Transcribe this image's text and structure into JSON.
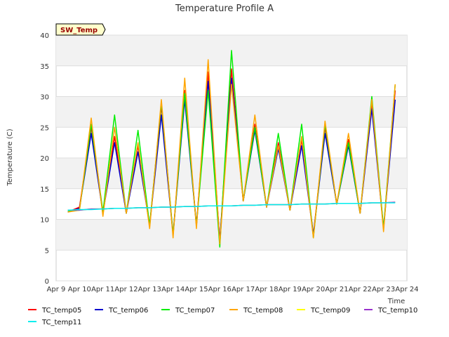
{
  "chart_data": {
    "type": "line",
    "title": "Temperature Profile A",
    "xlabel": "Time",
    "ylabel": "Temperature (C)",
    "ylim": [
      0,
      40
    ],
    "yticks": [
      0,
      5,
      10,
      15,
      20,
      25,
      30,
      35,
      40
    ],
    "x_range": [
      "2024-04-09",
      "2024-04-24"
    ],
    "xticks": [
      "Apr 9",
      "Apr 10",
      "Apr 11",
      "Apr 12",
      "Apr 13",
      "Apr 14",
      "Apr 15",
      "Apr 16",
      "Apr 17",
      "Apr 18",
      "Apr 19",
      "Apr 20",
      "Apr 21",
      "Apr 22",
      "Apr 23",
      "Apr 24"
    ],
    "grid": "horizontal bands",
    "legend_position": "bottom",
    "annotation": "SW_Temp",
    "x": [
      "2024-04-09 12:00",
      "2024-04-10 00:00",
      "2024-04-10 12:00",
      "2024-04-11 00:00",
      "2024-04-11 12:00",
      "2024-04-12 00:00",
      "2024-04-12 12:00",
      "2024-04-13 00:00",
      "2024-04-13 12:00",
      "2024-04-14 00:00",
      "2024-04-14 12:00",
      "2024-04-15 00:00",
      "2024-04-15 12:00",
      "2024-04-16 00:00",
      "2024-04-16 12:00",
      "2024-04-17 00:00",
      "2024-04-17 12:00",
      "2024-04-18 00:00",
      "2024-04-18 12:00",
      "2024-04-19 00:00",
      "2024-04-19 12:00",
      "2024-04-20 00:00",
      "2024-04-20 12:00",
      "2024-04-21 00:00",
      "2024-04-21 12:00",
      "2024-04-22 00:00",
      "2024-04-22 12:00",
      "2024-04-23 00:00",
      "2024-04-23 12:00"
    ],
    "series": [
      {
        "name": "TC_temp05",
        "color": "#ff0000",
        "values": [
          11.2,
          12.0,
          25.0,
          11.0,
          23.5,
          11.0,
          22.0,
          9.0,
          28.5,
          7.5,
          31.0,
          9.0,
          34.0,
          6.5,
          34.5,
          13.0,
          25.5,
          12.0,
          22.5,
          11.5,
          23.0,
          7.5,
          25.0,
          12.5,
          23.0,
          11.0,
          29.0,
          8.5,
          31.0
        ]
      },
      {
        "name": "TC_temp06",
        "color": "#0000cc",
        "values": [
          11.2,
          11.8,
          24.0,
          11.0,
          22.5,
          11.0,
          21.0,
          9.0,
          27.0,
          7.5,
          29.5,
          9.0,
          32.5,
          6.5,
          33.0,
          13.0,
          24.5,
          12.0,
          21.5,
          11.5,
          22.0,
          7.5,
          24.0,
          12.5,
          22.0,
          11.0,
          28.0,
          8.5,
          29.5
        ]
      },
      {
        "name": "TC_temp07",
        "color": "#00ee00",
        "values": [
          11.3,
          11.5,
          25.5,
          11.2,
          27.0,
          11.0,
          24.5,
          9.0,
          29.0,
          7.5,
          30.5,
          9.0,
          31.0,
          5.5,
          37.5,
          13.0,
          25.0,
          12.0,
          24.0,
          11.5,
          25.5,
          7.0,
          25.5,
          12.5,
          22.5,
          11.0,
          30.0,
          8.5,
          32.0
        ]
      },
      {
        "name": "TC_temp08",
        "color": "#ffa500",
        "values": [
          11.2,
          11.5,
          26.5,
          10.5,
          25.0,
          11.0,
          22.5,
          8.5,
          29.5,
          7.0,
          33.0,
          8.5,
          36.0,
          6.0,
          32.0,
          13.0,
          27.0,
          12.0,
          22.0,
          11.5,
          23.5,
          7.0,
          26.0,
          12.5,
          24.0,
          11.0,
          29.5,
          8.0,
          32.0
        ]
      },
      {
        "name": "TC_temp09",
        "color": "#ffff00",
        "values": [
          11.5,
          11.5,
          11.7,
          11.7,
          11.8,
          11.8,
          11.9,
          11.9,
          12.0,
          12.0,
          12.1,
          12.1,
          12.2,
          12.2,
          12.2,
          12.3,
          12.3,
          12.4,
          12.4,
          12.4,
          12.5,
          12.5,
          12.5,
          12.6,
          12.6,
          12.6,
          12.7,
          12.7,
          12.8
        ]
      },
      {
        "name": "TC_temp10",
        "color": "#9932cc",
        "values": [
          11.5,
          11.5,
          11.7,
          11.7,
          11.8,
          11.8,
          11.9,
          11.9,
          12.0,
          12.0,
          12.1,
          12.1,
          12.2,
          12.2,
          12.2,
          12.3,
          12.3,
          12.4,
          12.4,
          12.4,
          12.5,
          12.5,
          12.5,
          12.6,
          12.6,
          12.6,
          12.7,
          12.7,
          12.8
        ]
      },
      {
        "name": "TC_temp11",
        "color": "#00eeee",
        "values": [
          11.5,
          11.6,
          11.6,
          11.7,
          11.8,
          11.8,
          11.9,
          11.9,
          12.0,
          12.0,
          12.1,
          12.1,
          12.2,
          12.2,
          12.2,
          12.3,
          12.3,
          12.4,
          12.4,
          12.4,
          12.5,
          12.5,
          12.5,
          12.6,
          12.6,
          12.6,
          12.7,
          12.7,
          12.7
        ]
      }
    ]
  }
}
